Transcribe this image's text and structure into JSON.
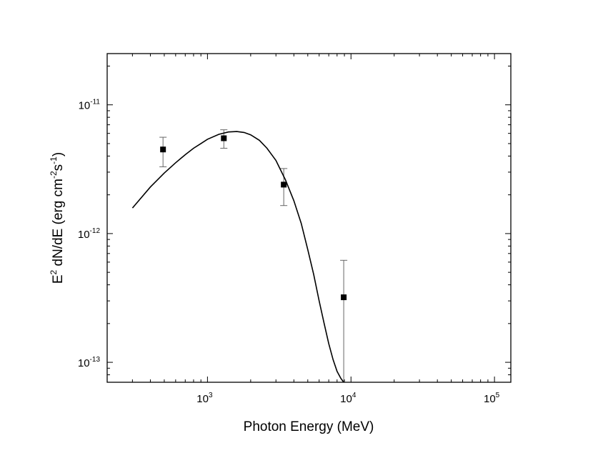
{
  "chart_data": {
    "type": "scatter",
    "xlabel": "Photon Energy (MeV)",
    "ylabel": {
      "parts": [
        "E",
        "2",
        " dN/dE (erg cm",
        "-2",
        "s",
        "-1",
        ")"
      ]
    },
    "xscale": "log",
    "yscale": "log",
    "xlim": [
      200,
      130000
    ],
    "ylim": [
      7e-14,
      2.5e-11
    ],
    "x_ticks": [
      {
        "base": "10",
        "exp": "3",
        "value": 1000
      },
      {
        "base": "10",
        "exp": "4",
        "value": 10000
      },
      {
        "base": "10",
        "exp": "5",
        "value": 100000
      }
    ],
    "y_ticks": [
      {
        "base": "10",
        "exp": "-13",
        "value": 1e-13
      },
      {
        "base": "10",
        "exp": "-12",
        "value": 1e-12
      },
      {
        "base": "10",
        "exp": "-11",
        "value": 1e-11
      }
    ],
    "grid": false,
    "series": [
      {
        "kind": "points-with-errorbars",
        "marker": "square",
        "color": "#000000",
        "x": [
          490,
          1300,
          3400,
          8900
        ],
        "y": [
          4.5e-12,
          5.5e-12,
          2.4e-12,
          3.2e-13
        ],
        "y_low": [
          3.3e-12,
          4.6e-12,
          1.65e-12,
          7e-14
        ],
        "y_high": [
          5.6e-12,
          6.4e-12,
          3.2e-12,
          6.2e-13
        ]
      },
      {
        "kind": "line",
        "color": "#000000",
        "x": [
          300,
          400,
          500,
          600,
          700,
          800,
          900,
          1000,
          1200,
          1400,
          1600,
          1800,
          2000,
          2300,
          2600,
          3000,
          3500,
          4000,
          4500,
          5000,
          5500,
          6000,
          6500,
          7000,
          7500,
          8000,
          8500,
          8900
        ],
        "y": [
          1.58e-12,
          2.3e-12,
          2.95e-12,
          3.55e-12,
          4.1e-12,
          4.6e-12,
          5e-12,
          5.4e-12,
          5.9e-12,
          6.15e-12,
          6.2e-12,
          6.1e-12,
          5.85e-12,
          5.3e-12,
          4.6e-12,
          3.7e-12,
          2.6e-12,
          1.8e-12,
          1.2e-12,
          7.5e-13,
          4.8e-13,
          3e-13,
          2e-13,
          1.4e-13,
          1.05e-13,
          8.5e-14,
          7.5e-14,
          7e-14
        ]
      }
    ]
  }
}
